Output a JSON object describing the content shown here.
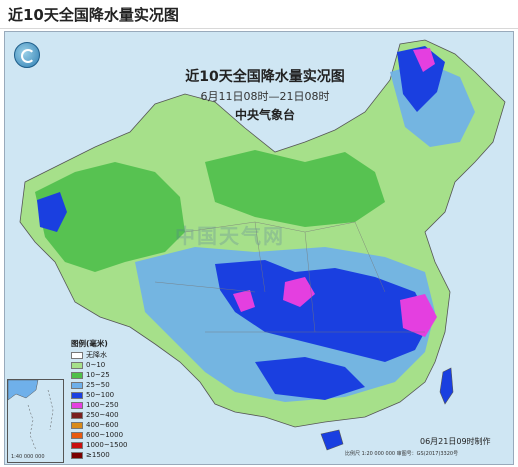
{
  "header": {
    "title": "近10天全国降水量实况图"
  },
  "map": {
    "title": "近10天全国降水量实况图",
    "date_range": "6月11日08时—21日08时",
    "organization": "中央气象台",
    "timestamp": "06月21日09时制作",
    "fineprint": "比例尺 1:20 000 000   审图号：GS(2017)3320号",
    "inset_scale": "1:40 000 000",
    "watermark": "中国天气网"
  },
  "legend": {
    "title": "图例(毫米)",
    "items": [
      {
        "label": "无降水",
        "color": "#ffffff"
      },
      {
        "label": "0~10",
        "color": "#a6e08a"
      },
      {
        "label": "10~25",
        "color": "#4fbf4a"
      },
      {
        "label": "25~50",
        "color": "#6fb0ea"
      },
      {
        "label": "50~100",
        "color": "#1a3fe0"
      },
      {
        "label": "100~250",
        "color": "#e43fe0"
      },
      {
        "label": "250~400",
        "color": "#7a1f1f"
      },
      {
        "label": "400~600",
        "color": "#d98a1a"
      },
      {
        "label": "600~1000",
        "color": "#e85a10"
      },
      {
        "label": "1000~1500",
        "color": "#c81010"
      },
      {
        "label": "≥1500",
        "color": "#7a0000"
      }
    ]
  }
}
